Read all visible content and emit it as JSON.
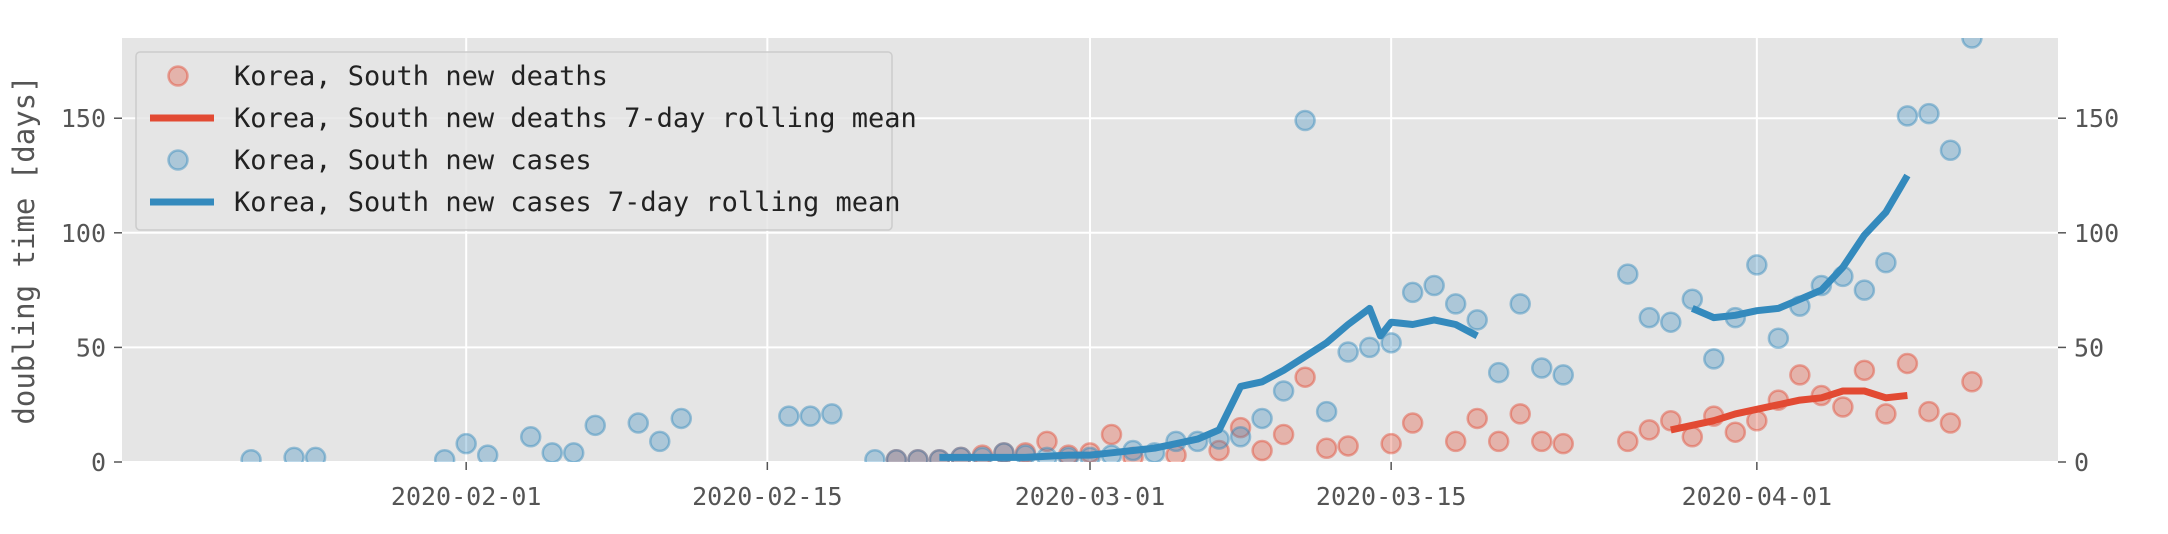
{
  "chart_data": {
    "type": "scatter",
    "ylabel": "doubling time [days]",
    "xlim": [
      "2020-01-16",
      "2020-04-15"
    ],
    "ylim": [
      0,
      185
    ],
    "yticks": [
      0,
      50,
      100,
      150
    ],
    "xticks": [
      "2020-02-01",
      "2020-02-15",
      "2020-03-01",
      "2020-03-15",
      "2020-04-01"
    ],
    "grid": true,
    "legend_position": "top-left",
    "colors": {
      "deaths": "#E24A33",
      "cases": "#348ABD",
      "background": "#E5E5E5",
      "grid": "#FFFFFF"
    },
    "series": [
      {
        "name": "Korea, South new deaths",
        "kind": "scatter",
        "color": "deaths",
        "points": [
          [
            "2020-02-21",
            1
          ],
          [
            "2020-02-22",
            1
          ],
          [
            "2020-02-23",
            1
          ],
          [
            "2020-02-24",
            2
          ],
          [
            "2020-02-25",
            3
          ],
          [
            "2020-02-26",
            4
          ],
          [
            "2020-02-27",
            4
          ],
          [
            "2020-02-28",
            9
          ],
          [
            "2020-02-29",
            3
          ],
          [
            "2020-03-01",
            4
          ],
          [
            "2020-03-02",
            12
          ],
          [
            "2020-03-03",
            2
          ],
          [
            "2020-03-05",
            3
          ],
          [
            "2020-03-07",
            5
          ],
          [
            "2020-03-08",
            15
          ],
          [
            "2020-03-09",
            5
          ],
          [
            "2020-03-10",
            12
          ],
          [
            "2020-03-11",
            37
          ],
          [
            "2020-03-12",
            6
          ],
          [
            "2020-03-13",
            7
          ],
          [
            "2020-03-15",
            8
          ],
          [
            "2020-03-16",
            17
          ],
          [
            "2020-03-18",
            9
          ],
          [
            "2020-03-19",
            19
          ],
          [
            "2020-03-20",
            9
          ],
          [
            "2020-03-21",
            21
          ],
          [
            "2020-03-22",
            9
          ],
          [
            "2020-03-23",
            8
          ],
          [
            "2020-03-26",
            9
          ],
          [
            "2020-03-27",
            14
          ],
          [
            "2020-03-28",
            18
          ],
          [
            "2020-03-29",
            11
          ],
          [
            "2020-03-30",
            20
          ],
          [
            "2020-03-31",
            13
          ],
          [
            "2020-04-01",
            18
          ],
          [
            "2020-04-02",
            27
          ],
          [
            "2020-04-03",
            38
          ],
          [
            "2020-04-04",
            29
          ],
          [
            "2020-04-05",
            24
          ],
          [
            "2020-04-06",
            40
          ],
          [
            "2020-04-07",
            21
          ],
          [
            "2020-04-08",
            43
          ],
          [
            "2020-04-09",
            22
          ],
          [
            "2020-04-10",
            17
          ],
          [
            "2020-04-11",
            35
          ]
        ]
      },
      {
        "name": "Korea, South new deaths 7-day rolling mean",
        "kind": "line",
        "color": "deaths",
        "points": [
          [
            "2020-03-28",
            14
          ],
          [
            "2020-03-29",
            16
          ],
          [
            "2020-03-30",
            18
          ],
          [
            "2020-03-31",
            21
          ],
          [
            "2020-04-01",
            23
          ],
          [
            "2020-04-02",
            25
          ],
          [
            "2020-04-03",
            27
          ],
          [
            "2020-04-04",
            28
          ],
          [
            "2020-04-05",
            31
          ],
          [
            "2020-04-06",
            31
          ],
          [
            "2020-04-07",
            28
          ],
          [
            "2020-04-08",
            29
          ]
        ]
      },
      {
        "name": "Korea, South new cases",
        "kind": "scatter",
        "color": "cases",
        "points": [
          [
            "2020-01-22",
            1
          ],
          [
            "2020-01-24",
            2
          ],
          [
            "2020-01-25",
            2
          ],
          [
            "2020-01-31",
            1
          ],
          [
            "2020-02-01",
            8
          ],
          [
            "2020-02-02",
            3
          ],
          [
            "2020-02-04",
            11
          ],
          [
            "2020-02-05",
            4
          ],
          [
            "2020-02-06",
            4
          ],
          [
            "2020-02-07",
            16
          ],
          [
            "2020-02-09",
            17
          ],
          [
            "2020-02-10",
            9
          ],
          [
            "2020-02-11",
            19
          ],
          [
            "2020-02-16",
            20
          ],
          [
            "2020-02-17",
            20
          ],
          [
            "2020-02-18",
            21
          ],
          [
            "2020-02-20",
            1
          ],
          [
            "2020-02-21",
            1
          ],
          [
            "2020-02-22",
            1
          ],
          [
            "2020-02-23",
            1
          ],
          [
            "2020-02-24",
            2
          ],
          [
            "2020-02-25",
            2
          ],
          [
            "2020-02-26",
            4
          ],
          [
            "2020-02-27",
            3
          ],
          [
            "2020-02-28",
            2
          ],
          [
            "2020-02-29",
            2
          ],
          [
            "2020-03-01",
            2
          ],
          [
            "2020-03-02",
            3
          ],
          [
            "2020-03-03",
            5
          ],
          [
            "2020-03-04",
            4
          ],
          [
            "2020-03-05",
            9
          ],
          [
            "2020-03-06",
            9
          ],
          [
            "2020-03-07",
            10
          ],
          [
            "2020-03-08",
            11
          ],
          [
            "2020-03-09",
            19
          ],
          [
            "2020-03-10",
            31
          ],
          [
            "2020-03-11",
            149
          ],
          [
            "2020-03-12",
            22
          ],
          [
            "2020-03-13",
            48
          ],
          [
            "2020-03-14",
            50
          ],
          [
            "2020-03-15",
            52
          ],
          [
            "2020-03-16",
            74
          ],
          [
            "2020-03-17",
            77
          ],
          [
            "2020-03-18",
            69
          ],
          [
            "2020-03-19",
            62
          ],
          [
            "2020-03-20",
            39
          ],
          [
            "2020-03-21",
            69
          ],
          [
            "2020-03-22",
            41
          ],
          [
            "2020-03-23",
            38
          ],
          [
            "2020-03-26",
            82
          ],
          [
            "2020-03-27",
            63
          ],
          [
            "2020-03-28",
            61
          ],
          [
            "2020-03-29",
            71
          ],
          [
            "2020-03-30",
            45
          ],
          [
            "2020-03-31",
            63
          ],
          [
            "2020-04-01",
            86
          ],
          [
            "2020-04-02",
            54
          ],
          [
            "2020-04-03",
            68
          ],
          [
            "2020-04-04",
            77
          ],
          [
            "2020-04-05",
            81
          ],
          [
            "2020-04-06",
            75
          ],
          [
            "2020-04-07",
            87
          ],
          [
            "2020-04-08",
            151
          ],
          [
            "2020-04-09",
            152
          ],
          [
            "2020-04-10",
            136
          ],
          [
            "2020-04-11",
            185
          ]
        ]
      },
      {
        "name": "Korea, South new cases 7-day rolling mean",
        "kind": "line",
        "color": "cases",
        "segments": [
          [
            [
              "2020-02-23",
              2
            ],
            [
              "2020-02-24",
              2
            ],
            [
              "2020-02-25",
              2
            ],
            [
              "2020-02-26",
              2
            ],
            [
              "2020-02-27",
              2
            ],
            [
              "2020-02-28",
              2.5
            ],
            [
              "2020-02-29",
              3
            ],
            [
              "2020-03-01",
              3
            ],
            [
              "2020-03-02",
              4
            ],
            [
              "2020-03-03",
              5
            ],
            [
              "2020-03-04",
              6
            ],
            [
              "2020-03-05",
              8
            ],
            [
              "2020-03-06",
              10
            ],
            [
              "2020-03-07",
              14
            ],
            [
              "2020-03-08",
              33
            ],
            [
              "2020-03-09",
              35
            ],
            [
              "2020-03-10",
              40
            ],
            [
              "2020-03-11",
              46
            ],
            [
              "2020-03-12",
              52
            ],
            [
              "2020-03-13",
              60
            ],
            [
              "2020-03-14",
              67
            ],
            [
              "2020-03-14.5",
              55
            ],
            [
              "2020-03-15",
              61
            ],
            [
              "2020-03-16",
              60
            ],
            [
              "2020-03-17",
              62
            ],
            [
              "2020-03-18",
              60
            ],
            [
              "2020-03-19",
              55
            ]
          ],
          [
            [
              "2020-03-29",
              67
            ],
            [
              "2020-03-30",
              63
            ],
            [
              "2020-03-31",
              64
            ],
            [
              "2020-04-01",
              66
            ],
            [
              "2020-04-02",
              67
            ],
            [
              "2020-04-03",
              71
            ],
            [
              "2020-04-04",
              75
            ],
            [
              "2020-04-05",
              85
            ],
            [
              "2020-04-06",
              99
            ],
            [
              "2020-04-07",
              109
            ],
            [
              "2020-04-08",
              125
            ]
          ]
        ]
      }
    ]
  }
}
